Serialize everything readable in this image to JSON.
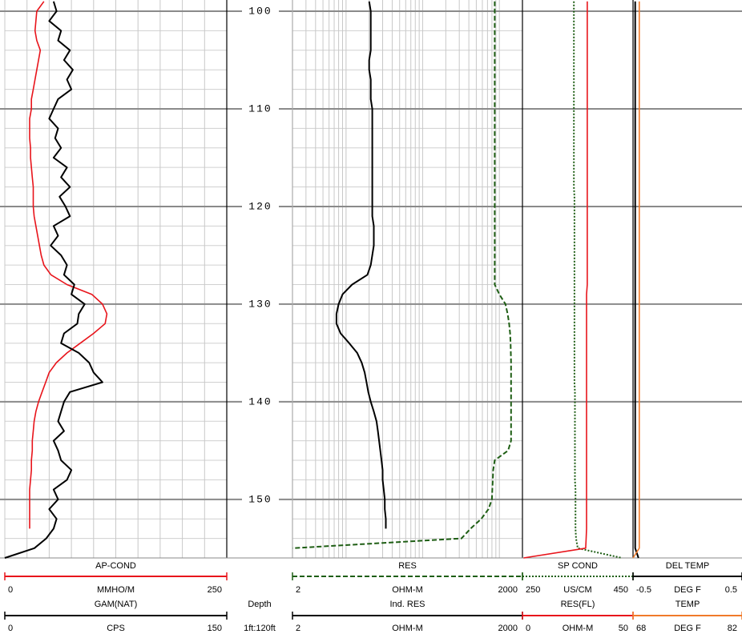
{
  "chart_data": {
    "type": "well-log",
    "depth_label": "Depth",
    "scale_label": "1ft:120ft",
    "ylim": [
      98.85,
      156
    ],
    "yticks": [
      100,
      110,
      120,
      130,
      140,
      150
    ],
    "minor_yticks": [
      102,
      104,
      106,
      108,
      112,
      114,
      116,
      118,
      122,
      124,
      126,
      128,
      132,
      134,
      136,
      138,
      142,
      144,
      146,
      148,
      152,
      154
    ],
    "depth": [
      99,
      100,
      101,
      102,
      103,
      104,
      105,
      106,
      107,
      108,
      109,
      110,
      111,
      112,
      113,
      114,
      115,
      116,
      117,
      118,
      119,
      120,
      121,
      122,
      123,
      124,
      125,
      126,
      127,
      128,
      129,
      130,
      131,
      132,
      133,
      134,
      135,
      136,
      137,
      138,
      139,
      140,
      141,
      142,
      143,
      144,
      145,
      146,
      147,
      148,
      149,
      150,
      151,
      152,
      153,
      154,
      155,
      156
    ],
    "tracks": [
      {
        "log": false,
        "xticks": [
          0,
          25,
          50,
          75,
          100,
          125,
          150,
          175,
          200,
          225,
          250
        ],
        "curves": [
          {
            "name": "AP-COND",
            "unit": "MMHO/M",
            "xlim": [
              0,
              250
            ],
            "color": "#e8141b",
            "dash": "solid",
            "values": [
              44,
              36,
              35,
              34,
              36,
              40,
              38,
              36,
              34,
              32,
              30,
              30,
              28,
              28,
              28,
              29,
              29,
              30,
              31,
              32,
              32,
              32,
              33,
              35,
              37,
              39,
              41,
              44,
              52,
              70,
              98,
              110,
              115,
              113,
              100,
              85,
              70,
              58,
              50,
              46,
              42,
              38,
              35,
              33,
              32,
              31,
              31,
              30,
              30,
              29,
              28,
              28,
              28,
              28,
              28,
              null,
              null,
              null
            ]
          },
          {
            "name": "GAM(NAT)",
            "unit": "CPS",
            "xlim": [
              0,
              150
            ],
            "color": "#000000",
            "dash": "solid",
            "values": [
              33,
              35,
              30,
              38,
              36,
              44,
              40,
              46,
              42,
              45,
              36,
              33,
              30,
              36,
              34,
              38,
              33,
              42,
              38,
              44,
              37,
              41,
              44,
              33,
              36,
              31,
              38,
              42,
              40,
              47,
              45,
              54,
              50,
              49,
              40,
              38,
              50,
              57,
              60,
              66,
              44,
              40,
              38,
              36,
              40,
              33,
              36,
              38,
              45,
              42,
              33,
              36,
              30,
              35,
              33,
              28,
              20,
              0
            ]
          }
        ]
      },
      {
        "log": true,
        "xticks": [
          2,
          3,
          4,
          5,
          6,
          7,
          8,
          9,
          10,
          20,
          30,
          40,
          50,
          60,
          70,
          80,
          90,
          100,
          200,
          300,
          400,
          500,
          600,
          700,
          800,
          900,
          1000,
          2000
        ],
        "curves": [
          {
            "name": "RES",
            "unit": "OHM-M",
            "xlim": [
              2,
              2000
            ],
            "color": "#1e5e14",
            "dash": "dashed",
            "values": [
              870,
              870,
              870,
              870,
              870,
              870,
              870,
              870,
              870,
              870,
              870,
              870,
              870,
              870,
              870,
              870,
              870,
              870,
              870,
              870,
              870,
              870,
              870,
              870,
              870,
              870,
              870,
              870,
              870,
              870,
              1000,
              1200,
              1280,
              1340,
              1380,
              1400,
              1410,
              1420,
              1420,
              1420,
              1420,
              1420,
              1420,
              1420,
              1420,
              1420,
              1300,
              870,
              830,
              820,
              810,
              800,
              720,
              580,
              420,
              320,
              2,
              null
            ]
          },
          {
            "name": "Ind. RES",
            "unit": "OHM-M",
            "xlim": [
              2,
              2000
            ],
            "color": "#000000",
            "dash": "solid",
            "values": [
              20,
              21,
              21,
              21,
              21,
              21,
              20,
              20,
              21,
              21,
              21,
              22,
              22,
              22,
              22,
              22,
              22,
              22,
              22,
              22,
              22,
              22,
              22,
              23,
              23,
              23,
              22,
              21,
              19,
              12,
              9,
              8,
              7.5,
              7.5,
              8.5,
              11,
              14,
              16,
              17.5,
              18.5,
              19.5,
              21,
              23,
              25,
              26,
              27,
              28,
              29,
              30,
              30,
              31,
              32,
              32,
              33,
              33,
              null,
              null,
              null
            ]
          }
        ]
      },
      {
        "log": false,
        "curves": [
          {
            "name": "SP COND",
            "unit": "US/CM",
            "xlim": [
              250,
              450
            ],
            "color": "#1e5e14",
            "dash": "dotted",
            "values": [
              343,
              343,
              343,
              343,
              343,
              343,
              343,
              343,
              343,
              343,
              343,
              343,
              343,
              343,
              343,
              343,
              343,
              343,
              343,
              343,
              344,
              344,
              344,
              344,
              344,
              344,
              344,
              344,
              344,
              344,
              344,
              344,
              344,
              344,
              344,
              344,
              344,
              344,
              344,
              344,
              345,
              345,
              345,
              345,
              345,
              345,
              345,
              345,
              345,
              345,
              346,
              346,
              346,
              346,
              346,
              347,
              350,
              430
            ]
          },
          {
            "name": "RES(FL)",
            "unit": "OHM-M",
            "xlim": [
              0,
              50
            ],
            "color": "#e8141b",
            "dash": "solid",
            "values": [
              29.3,
              29.3,
              29.3,
              29.3,
              29.3,
              29.3,
              29.3,
              29.3,
              29.3,
              29.3,
              29.3,
              29.3,
              29.3,
              29.3,
              29.3,
              29.3,
              29.3,
              29.3,
              29.3,
              29.3,
              29.3,
              29.3,
              29.3,
              29.3,
              29.3,
              29.3,
              29.3,
              29.3,
              29.3,
              29.3,
              29,
              29,
              29,
              29,
              29,
              29,
              29,
              29,
              29,
              29,
              29,
              29,
              29,
              29,
              29,
              29,
              29,
              29,
              29,
              29,
              29,
              29,
              29,
              29,
              29,
              28.8,
              28.6,
              0.5
            ]
          }
        ]
      },
      {
        "log": false,
        "curves": [
          {
            "name": "DEL TEMP",
            "unit": "DEG F",
            "xlim": [
              -0.5,
              0.5
            ],
            "color": "#000000",
            "dash": "solid",
            "values": [
              -0.48,
              -0.48,
              -0.48,
              -0.48,
              -0.48,
              -0.48,
              -0.48,
              -0.48,
              -0.48,
              -0.48,
              -0.48,
              -0.48,
              -0.48,
              -0.48,
              -0.48,
              -0.48,
              -0.48,
              -0.48,
              -0.48,
              -0.48,
              -0.48,
              -0.48,
              -0.48,
              -0.48,
              -0.48,
              -0.48,
              -0.48,
              -0.48,
              -0.48,
              -0.48,
              -0.48,
              -0.48,
              -0.48,
              -0.48,
              -0.48,
              -0.48,
              -0.48,
              -0.48,
              -0.48,
              -0.48,
              -0.48,
              -0.48,
              -0.48,
              -0.48,
              -0.48,
              -0.48,
              -0.48,
              -0.48,
              -0.48,
              -0.48,
              -0.48,
              -0.48,
              -0.48,
              -0.48,
              -0.48,
              -0.48,
              -0.48,
              -0.45
            ]
          },
          {
            "name": "TEMP",
            "unit": "DEG F",
            "xlim": [
              68,
              82
            ],
            "color": "#f07a2a",
            "dash": "solid",
            "values": [
              68.8,
              68.8,
              68.8,
              68.8,
              68.8,
              68.8,
              68.8,
              68.8,
              68.8,
              68.8,
              68.8,
              68.8,
              68.8,
              68.8,
              68.8,
              68.8,
              68.8,
              68.8,
              68.8,
              68.8,
              68.8,
              68.8,
              68.8,
              68.8,
              68.8,
              68.8,
              68.8,
              68.8,
              68.8,
              68.8,
              68.8,
              68.8,
              68.8,
              68.8,
              68.8,
              68.8,
              68.8,
              68.8,
              68.8,
              68.8,
              68.8,
              68.8,
              68.8,
              68.8,
              68.8,
              68.8,
              68.8,
              68.8,
              68.8,
              68.8,
              68.8,
              68.8,
              68.8,
              68.8,
              68.8,
              68.8,
              68.8,
              68
            ]
          }
        ]
      }
    ]
  }
}
